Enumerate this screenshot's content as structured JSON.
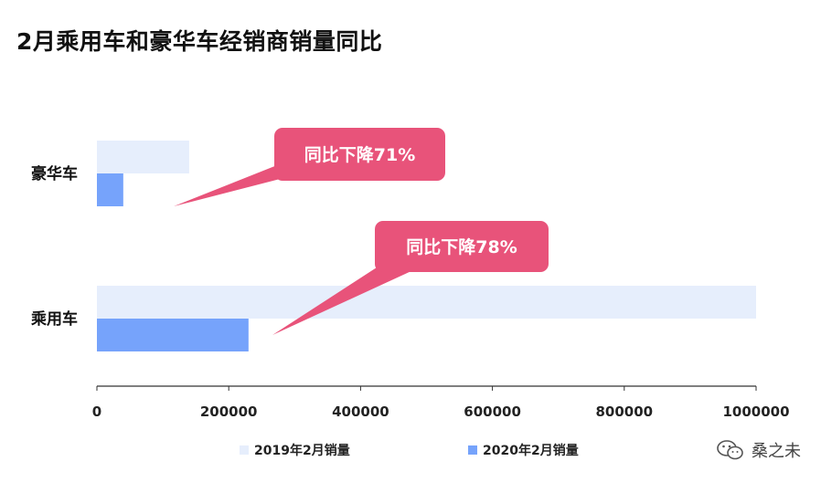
{
  "title": "2月乘用车和豪华车经销商销量同比",
  "colors": {
    "series_2019": "#e6eefc",
    "series_2020": "#76a3fb",
    "callout": "#e8537a",
    "axis": "#333333"
  },
  "chart_data": {
    "type": "bar",
    "orientation": "horizontal",
    "categories": [
      "豪华车",
      "乘用车"
    ],
    "series": [
      {
        "name": "2019年2月销量",
        "values": [
          140000,
          1000000
        ]
      },
      {
        "name": "2020年2月销量",
        "values": [
          40000,
          230000
        ]
      }
    ],
    "xlim": [
      0,
      1000000
    ],
    "xticks": [
      "0",
      "200000",
      "400000",
      "600000",
      "800000",
      "1000000"
    ],
    "grid": false,
    "legend": "bottom",
    "annotations": [
      {
        "text": "同比下降71%",
        "category": "豪华车"
      },
      {
        "text": "同比下降78%",
        "category": "乘用车"
      }
    ]
  },
  "watermark": {
    "text": "桑之未",
    "icon": "wechat-icon"
  }
}
